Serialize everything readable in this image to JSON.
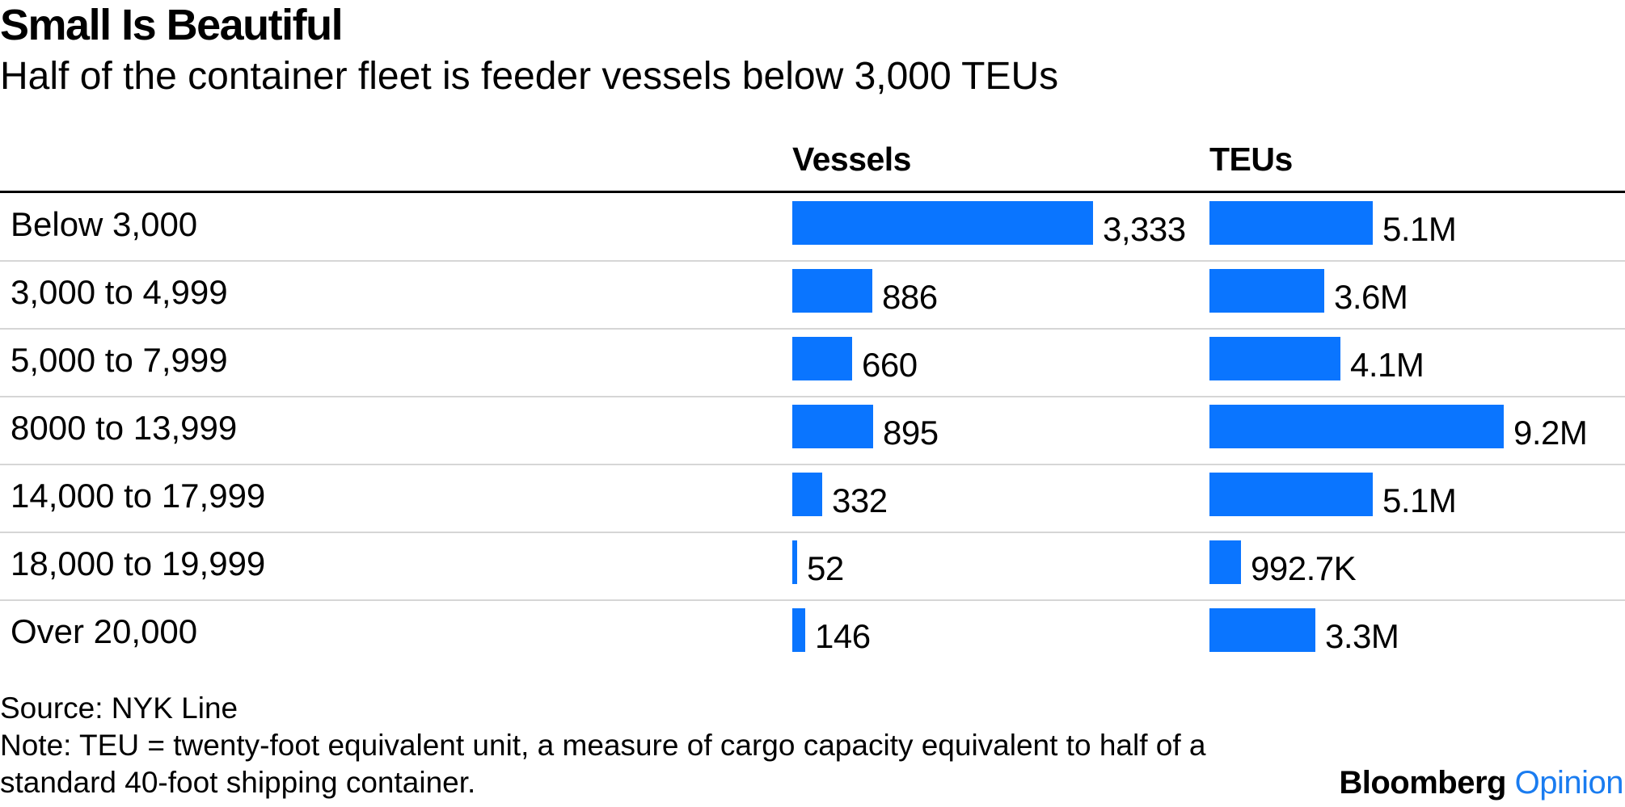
{
  "chart_data": {
    "type": "bar",
    "title": "Small Is Beautiful",
    "subtitle": "Half of the container fleet is feeder vessels below 3,000 TEUs",
    "categories": [
      "Below 3,000",
      "3,000 to 4,999",
      "5,000 to 7,999",
      "8000 to 13,999",
      "14,000 to 17,999",
      "18,000 to 19,999",
      "Over 20,000"
    ],
    "series": [
      {
        "name": "Vessels",
        "values": [
          3333,
          886,
          660,
          895,
          332,
          52,
          146
        ],
        "labels": [
          "3,333",
          "886",
          "660",
          "895",
          "332",
          "52",
          "146"
        ]
      },
      {
        "name": "TEUs",
        "values": [
          5100000,
          3600000,
          4100000,
          9200000,
          5100000,
          992700,
          3300000
        ],
        "labels": [
          "5.1M",
          "3.6M",
          "4.1M",
          "9.2M",
          "5.1M",
          "992.7K",
          "3.3M"
        ]
      }
    ],
    "source": "Source: NYK Line",
    "note": "Note: TEU = twenty-foot equivalent unit, a measure of cargo capacity equivalent to half of a standard 40-foot shipping container."
  },
  "colors": {
    "bar": "#0a75ff",
    "brand_accent": "#1a7cf0"
  },
  "branding": {
    "name": "Bloomberg",
    "section": "Opinion"
  }
}
